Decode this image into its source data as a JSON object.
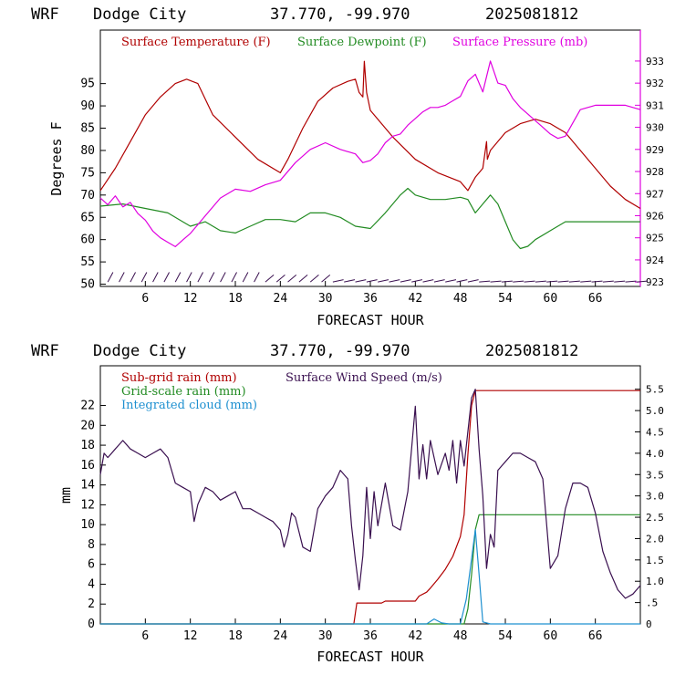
{
  "panels": [
    {
      "header": {
        "model": "WRF",
        "station": "Dodge City",
        "coords": "37.770, -99.970",
        "init": "2025081812"
      },
      "ylabel": "Degrees F",
      "xlabel": "FORECAST HOUR",
      "legend": [
        {
          "text": "Surface Temperature (F)",
          "color": "#b00000"
        },
        {
          "text": "Surface Dewpoint (F)",
          "color": "#228b22"
        },
        {
          "text": "Surface Pressure (mb)",
          "color": "#e000e0"
        }
      ]
    },
    {
      "header": {
        "model": "WRF",
        "station": "Dodge City",
        "coords": "37.770, -99.970",
        "init": "2025081812"
      },
      "ylabel": "mm",
      "xlabel": "FORECAST HOUR",
      "legend": [
        {
          "text": "Sub-grid rain (mm)",
          "color": "#b00000"
        },
        {
          "text": "Surface Wind Speed (m/s)",
          "color": "#3a1050"
        },
        {
          "text": "Grid-scale rain (mm)",
          "color": "#228b22"
        },
        {
          "text": "Integrated cloud (mm)",
          "color": "#1e90d0"
        }
      ]
    }
  ],
  "chart_data": [
    {
      "type": "line",
      "xlabel": "FORECAST HOUR",
      "ylabel": "Degrees F",
      "y2label": "",
      "xlim": [
        0,
        72
      ],
      "ylim": [
        49.5,
        107
      ],
      "y2lim": [
        922.8,
        934.4
      ],
      "xticks": [
        6,
        12,
        18,
        24,
        30,
        36,
        42,
        48,
        54,
        60,
        66
      ],
      "yticks": [
        50,
        55,
        60,
        65,
        70,
        75,
        80,
        85,
        90,
        95
      ],
      "y2ticks": [
        923,
        924,
        925,
        926,
        927,
        928,
        929,
        930,
        931,
        932,
        933
      ],
      "series": [
        {
          "name": "Surface Temperature (F)",
          "axis": "left",
          "color": "#b00000",
          "x": [
            0,
            2,
            4,
            6,
            8,
            10,
            11.5,
            13,
            15,
            18,
            21,
            24,
            25,
            27,
            29,
            31,
            33,
            34,
            34.5,
            35,
            35.2,
            35.5,
            36,
            39,
            42,
            45,
            48,
            49,
            50,
            51,
            51.5,
            51.6,
            52,
            54,
            56,
            58,
            60,
            62,
            64,
            66,
            68,
            70,
            72
          ],
          "y": [
            71,
            76,
            82,
            88,
            92,
            95,
            96,
            95,
            88,
            83,
            78,
            75,
            78,
            85,
            91,
            94,
            95.5,
            96,
            93,
            92,
            100,
            93,
            89,
            83,
            78,
            75,
            73,
            71,
            74,
            76,
            82,
            78,
            80,
            84,
            86,
            87,
            86,
            84,
            80,
            76,
            72,
            69,
            67
          ]
        },
        {
          "name": "Surface Dewpoint (F)",
          "axis": "left",
          "color": "#228b22",
          "x": [
            0,
            3,
            6,
            9,
            11,
            12,
            14,
            16,
            18,
            20,
            22,
            24,
            26,
            28,
            30,
            32,
            34,
            36,
            38,
            40,
            41,
            42,
            44,
            46,
            48,
            49,
            50,
            51,
            52,
            53,
            54,
            55,
            56,
            57,
            58,
            60,
            62,
            64,
            66,
            68,
            70,
            72
          ],
          "y": [
            67.5,
            68,
            67,
            66,
            64,
            63,
            64,
            62,
            61.5,
            63,
            64.5,
            64.5,
            64,
            66,
            66,
            65,
            63,
            62.5,
            66,
            70,
            71.5,
            70,
            69,
            69,
            69.5,
            69,
            66,
            68,
            70,
            68,
            64,
            60,
            58,
            58.5,
            60,
            62,
            64,
            64,
            64,
            64,
            64,
            64
          ]
        },
        {
          "name": "Surface Pressure (mb)",
          "axis": "right",
          "color": "#e000e0",
          "x": [
            0,
            1,
            2,
            3,
            4,
            5,
            6,
            7,
            8,
            9,
            10,
            11,
            12,
            13,
            14,
            16,
            18,
            20,
            22,
            24,
            26,
            28,
            30,
            32,
            34,
            35,
            36,
            37,
            38,
            39,
            40,
            41,
            42,
            43,
            44,
            45,
            46,
            47,
            48,
            49,
            50,
            51,
            52,
            53,
            54,
            55,
            56,
            57,
            58,
            59,
            60,
            61,
            62,
            63,
            64,
            66,
            68,
            70,
            72
          ],
          "y": [
            926.8,
            926.5,
            926.9,
            926.4,
            926.6,
            926.1,
            925.8,
            925.3,
            925,
            924.8,
            924.6,
            924.9,
            925.2,
            925.6,
            926,
            926.8,
            927.2,
            927.1,
            927.4,
            927.6,
            928.4,
            929,
            929.3,
            929,
            928.8,
            928.4,
            928.5,
            928.8,
            929.3,
            929.6,
            929.7,
            930.1,
            930.4,
            930.7,
            930.9,
            930.9,
            931.0,
            931.2,
            931.4,
            932.1,
            932.4,
            931.6,
            933.0,
            932.0,
            931.9,
            931.3,
            930.9,
            930.6,
            930.3,
            930.0,
            929.7,
            929.5,
            929.6,
            930.2,
            930.8,
            931.0,
            931.0,
            931.0,
            930.8
          ]
        }
      ],
      "wind_barbs": true
    },
    {
      "type": "line",
      "xlabel": "FORECAST HOUR",
      "ylabel": "mm",
      "y2label": "",
      "xlim": [
        0,
        72
      ],
      "ylim": [
        0,
        26
      ],
      "y2lim": [
        0,
        6.05
      ],
      "xticks": [
        6,
        12,
        18,
        24,
        30,
        36,
        42,
        48,
        54,
        60,
        66
      ],
      "yticks": [
        0,
        2,
        4,
        6,
        8,
        10,
        12,
        14,
        16,
        18,
        20,
        22
      ],
      "y2ticks": [
        0,
        0.5,
        1.0,
        1.5,
        2.0,
        2.5,
        3.0,
        3.5,
        4.0,
        4.5,
        5.0,
        5.5
      ],
      "y2ticklabels": [
        "0",
        ".5",
        "1.0",
        "1.5",
        "2.0",
        "2.5",
        "3.0",
        "3.5",
        "4.0",
        "4.5",
        "5.0",
        "5.5"
      ],
      "series": [
        {
          "name": "Sub-grid rain (mm)",
          "axis": "left",
          "color": "#b00000",
          "x": [
            0,
            33.8,
            34.2,
            37.5,
            38,
            42,
            42.5,
            43.5,
            44,
            45,
            46,
            47,
            48,
            48.5,
            49,
            49.5,
            50,
            50.5,
            72
          ],
          "y": [
            0,
            0,
            2.1,
            2.1,
            2.3,
            2.3,
            2.8,
            3.2,
            3.6,
            4.5,
            5.5,
            6.8,
            8.8,
            11,
            17,
            22,
            23.5,
            23.5,
            23.5
          ]
        },
        {
          "name": "Grid-scale rain (mm)",
          "axis": "left",
          "color": "#228b22",
          "x": [
            0,
            48.5,
            49,
            49.5,
            50,
            50.5,
            51,
            72
          ],
          "y": [
            0,
            0,
            1.5,
            5.0,
            9.5,
            11,
            11,
            11
          ]
        },
        {
          "name": "Integrated cloud (mm)",
          "axis": "left",
          "color": "#1e90d0",
          "x": [
            0,
            43.5,
            44.5,
            45.5,
            46.5,
            48,
            48.8,
            49.4,
            50,
            50.5,
            51,
            52,
            72
          ],
          "y": [
            0,
            0,
            0.5,
            0.1,
            0,
            0,
            2.5,
            6,
            9.5,
            5,
            0.2,
            0,
            0
          ]
        },
        {
          "name": "Surface Wind Speed (m/s)",
          "axis": "right",
          "color": "#3a1050",
          "x": [
            0,
            0.5,
            1,
            2,
            3,
            4,
            5,
            6,
            7,
            8,
            9,
            10,
            11,
            12,
            12.5,
            13,
            14,
            15,
            16,
            17,
            18,
            19,
            20,
            21,
            22,
            23,
            24,
            24.5,
            25,
            25.5,
            26,
            27,
            28,
            29,
            30,
            31,
            32,
            33,
            33.5,
            34,
            34.5,
            35,
            35.5,
            36,
            36.5,
            37,
            38,
            39,
            40,
            41,
            42,
            42.5,
            43,
            43.5,
            44,
            45,
            46,
            46.5,
            47,
            47.5,
            48,
            48.5,
            49,
            49.5,
            50,
            50.5,
            51,
            51.5,
            52,
            52.5,
            53,
            54,
            55,
            56,
            57,
            58,
            59,
            60,
            61,
            62,
            63,
            64,
            65,
            66,
            67,
            68,
            69,
            70,
            71,
            72
          ],
          "y": [
            3.5,
            4.0,
            3.9,
            4.1,
            4.3,
            4.1,
            4.0,
            3.9,
            4.0,
            4.1,
            3.9,
            3.3,
            3.2,
            3.1,
            2.4,
            2.8,
            3.2,
            3.1,
            2.9,
            3.0,
            3.1,
            2.7,
            2.7,
            2.6,
            2.5,
            2.4,
            2.2,
            1.8,
            2.1,
            2.6,
            2.5,
            1.8,
            1.7,
            2.7,
            3.0,
            3.2,
            3.6,
            3.4,
            2.3,
            1.5,
            0.8,
            1.6,
            3.2,
            2.0,
            3.1,
            2.3,
            3.3,
            2.3,
            2.2,
            3.1,
            5.1,
            3.4,
            4.2,
            3.4,
            4.3,
            3.5,
            4.0,
            3.6,
            4.3,
            3.3,
            4.3,
            3.7,
            4.5,
            5.3,
            5.5,
            4.1,
            3.0,
            1.3,
            2.1,
            1.8,
            3.6,
            3.8,
            4.0,
            4.0,
            3.9,
            3.8,
            3.4,
            1.3,
            1.6,
            2.7,
            3.3,
            3.3,
            3.2,
            2.6,
            1.7,
            1.2,
            0.8,
            0.6,
            0.7,
            0.9
          ]
        }
      ]
    }
  ]
}
